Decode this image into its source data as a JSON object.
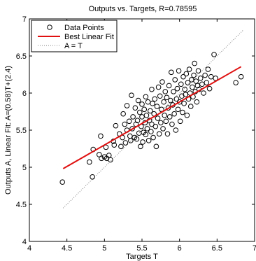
{
  "chart_data": {
    "type": "scatter",
    "title": "Outputs vs. Targets, R=0.78595",
    "xlabel": "Targets T",
    "ylabel": "Outputs A,  Linear Fit: A=(0.58)T+(2.4)",
    "xlim": [
      4,
      7
    ],
    "ylim": [
      4,
      7
    ],
    "xticks": [
      4,
      4.5,
      5,
      5.5,
      6,
      6.5,
      7
    ],
    "yticks": [
      4,
      4.5,
      5,
      5.5,
      6,
      6.5,
      7
    ],
    "xtick_labels": [
      "4",
      "4.5",
      "5",
      "5.5",
      "6",
      "6.5",
      "7"
    ],
    "ytick_labels": [
      "4",
      "4.5",
      "5",
      "5.5",
      "6",
      "6.5",
      "7"
    ],
    "grid": false,
    "legend_position": "top-left",
    "legend": [
      {
        "label": "Data Points",
        "marker": "circle"
      },
      {
        "label": "Best Linear Fit",
        "line": "solid",
        "color": "#e01010"
      },
      {
        "label": "A = T",
        "line": "dotted",
        "color": "#808080"
      }
    ],
    "fit_line": {
      "slope": 0.58,
      "intercept": 2.4,
      "x": [
        4.45,
        6.82
      ],
      "color": "#e01010"
    },
    "identity_line": {
      "x": [
        4.45,
        6.85
      ],
      "color": "#808080"
    },
    "points": [
      [
        4.44,
        4.8
      ],
      [
        4.8,
        5.07
      ],
      [
        4.84,
        4.87
      ],
      [
        4.85,
        5.24
      ],
      [
        4.93,
        5.17
      ],
      [
        4.95,
        5.42
      ],
      [
        4.96,
        5.12
      ],
      [
        5.0,
        5.14
      ],
      [
        5.02,
        5.27
      ],
      [
        5.03,
        5.12
      ],
      [
        5.06,
        5.16
      ],
      [
        5.08,
        5.1
      ],
      [
        5.12,
        5.35
      ],
      [
        5.13,
        5.3
      ],
      [
        5.15,
        5.56
      ],
      [
        5.2,
        5.45
      ],
      [
        5.22,
        5.28
      ],
      [
        5.24,
        5.4
      ],
      [
        5.25,
        5.72
      ],
      [
        5.27,
        5.58
      ],
      [
        5.28,
        5.33
      ],
      [
        5.3,
        5.5
      ],
      [
        5.3,
        5.83
      ],
      [
        5.33,
        5.62
      ],
      [
        5.34,
        5.42
      ],
      [
        5.35,
        5.36
      ],
      [
        5.36,
        5.97
      ],
      [
        5.37,
        5.52
      ],
      [
        5.38,
        5.68
      ],
      [
        5.4,
        5.4
      ],
      [
        5.41,
        5.8
      ],
      [
        5.42,
        5.58
      ],
      [
        5.43,
        5.38
      ],
      [
        5.44,
        5.63
      ],
      [
        5.45,
        5.9
      ],
      [
        5.46,
        5.46
      ],
      [
        5.47,
        5.74
      ],
      [
        5.48,
        5.28
      ],
      [
        5.49,
        5.55
      ],
      [
        5.5,
        5.68
      ],
      [
        5.5,
        5.85
      ],
      [
        5.51,
        5.34
      ],
      [
        5.52,
        5.47
      ],
      [
        5.53,
        5.78
      ],
      [
        5.54,
        5.6
      ],
      [
        5.55,
        5.44
      ],
      [
        5.55,
        5.95
      ],
      [
        5.56,
        5.7
      ],
      [
        5.57,
        5.52
      ],
      [
        5.58,
        5.88
      ],
      [
        5.59,
        5.36
      ],
      [
        5.6,
        5.63
      ],
      [
        5.61,
        5.76
      ],
      [
        5.62,
        5.48
      ],
      [
        5.63,
        6.05
      ],
      [
        5.63,
        5.58
      ],
      [
        5.64,
        5.86
      ],
      [
        5.65,
        5.4
      ],
      [
        5.66,
        5.72
      ],
      [
        5.67,
        5.92
      ],
      [
        5.68,
        5.55
      ],
      [
        5.69,
        5.28
      ],
      [
        5.7,
        5.82
      ],
      [
        5.71,
        5.66
      ],
      [
        5.72,
        6.08
      ],
      [
        5.73,
        5.45
      ],
      [
        5.74,
        5.96
      ],
      [
        5.75,
        5.6
      ],
      [
        5.76,
        5.78
      ],
      [
        5.77,
        6.15
      ],
      [
        5.78,
        5.52
      ],
      [
        5.79,
        5.88
      ],
      [
        5.8,
        5.7
      ],
      [
        5.81,
        6.02
      ],
      [
        5.82,
        5.62
      ],
      [
        5.83,
        5.94
      ],
      [
        5.84,
        5.45
      ],
      [
        5.85,
        5.8
      ],
      [
        5.86,
        6.1
      ],
      [
        5.87,
        5.68
      ],
      [
        5.88,
        5.9
      ],
      [
        5.89,
        6.28
      ],
      [
        5.9,
        5.58
      ],
      [
        5.91,
        5.84
      ],
      [
        5.92,
        6.02
      ],
      [
        5.93,
        5.72
      ],
      [
        5.94,
        6.18
      ],
      [
        5.95,
        5.5
      ],
      [
        5.96,
        5.92
      ],
      [
        5.97,
        6.06
      ],
      [
        5.98,
        5.78
      ],
      [
        5.99,
        6.3
      ],
      [
        6.0,
        5.88
      ],
      [
        6.01,
        5.62
      ],
      [
        6.02,
        6.12
      ],
      [
        6.03,
        5.96
      ],
      [
        6.04,
        5.74
      ],
      [
        6.05,
        6.22
      ],
      [
        6.06,
        5.86
      ],
      [
        6.07,
        6.05
      ],
      [
        6.08,
        5.98
      ],
      [
        6.09,
        6.26
      ],
      [
        6.1,
        5.7
      ],
      [
        6.11,
        6.14
      ],
      [
        6.12,
        5.92
      ],
      [
        6.13,
        6.32
      ],
      [
        6.14,
        6.0
      ],
      [
        6.15,
        5.82
      ],
      [
        6.16,
        6.18
      ],
      [
        6.17,
        6.08
      ],
      [
        6.18,
        5.95
      ],
      [
        6.19,
        6.24
      ],
      [
        6.2,
        6.4
      ],
      [
        6.21,
        6.02
      ],
      [
        6.22,
        6.16
      ],
      [
        6.23,
        5.88
      ],
      [
        6.24,
        6.1
      ],
      [
        6.25,
        6.3
      ],
      [
        6.26,
        6.05
      ],
      [
        6.28,
        6.2
      ],
      [
        6.3,
        6.12
      ],
      [
        6.32,
        6.0
      ],
      [
        6.34,
        6.24
      ],
      [
        6.36,
        6.14
      ],
      [
        6.38,
        6.32
      ],
      [
        6.4,
        6.06
      ],
      [
        6.42,
        6.22
      ],
      [
        6.46,
        6.52
      ],
      [
        6.48,
        6.2
      ],
      [
        6.75,
        6.14
      ],
      [
        6.82,
        6.22
      ]
    ]
  }
}
